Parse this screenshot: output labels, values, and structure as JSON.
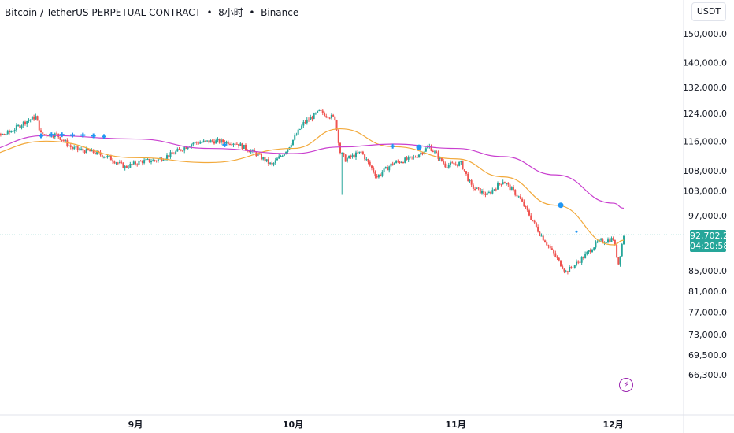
{
  "header": {
    "title": "Bitcoin / TetherUS PERPETUAL CONTRACT  •  8小时  •  Binance",
    "currency": "USDT"
  },
  "price_badge": {
    "price": "92,702.2",
    "countdown": "04:20:58"
  },
  "colors": {
    "up": "#26a69a",
    "down": "#ef5350",
    "ma_fast": "#f2a93b",
    "ma_slow": "#c93fcf",
    "marker": "#2196f3",
    "bolt": "#9c27b0"
  },
  "icons": {
    "bolt": "lightning-icon"
  },
  "chart_data": {
    "type": "candlestick",
    "title": "",
    "scale": "log",
    "ylim": [
      63000,
      160000
    ],
    "y_ticks": [
      "150,000.0",
      "140,000.0",
      "132,000.0",
      "124,000.0",
      "116,000.0",
      "108,000.0",
      "103,000.0",
      "97,000.0",
      "85,000.0",
      "81,000.0",
      "77,000.0",
      "73,000.0",
      "69,500.0",
      "66,300.0"
    ],
    "x_ticks": [
      "9月",
      "10月",
      "11月",
      "12月"
    ],
    "last_price": 92702.2,
    "close_path": [
      [
        "Aug 1",
        114500
      ],
      [
        "Aug 4",
        116500
      ],
      [
        "Aug 8",
        118500
      ],
      [
        "Aug 11",
        121500
      ],
      [
        "Aug 13",
        123000
      ],
      [
        "Aug 14",
        118000
      ],
      [
        "Aug 17",
        117800
      ],
      [
        "Aug 20",
        114000
      ],
      [
        "Aug 24",
        113000
      ],
      [
        "Aug 27",
        111500
      ],
      [
        "Aug 30",
        109000
      ],
      [
        "Sep 2",
        110500
      ],
      [
        "Sep 5",
        110800
      ],
      [
        "Sep 8",
        112500
      ],
      [
        "Sep 12",
        115500
      ],
      [
        "Sep 16",
        116000
      ],
      [
        "Sep 20",
        115600
      ],
      [
        "Sep 24",
        112500
      ],
      [
        "Sep 27",
        109500
      ],
      [
        "Sep 30",
        114000
      ],
      [
        "Oct 3",
        121000
      ],
      [
        "Oct 6",
        124500
      ],
      [
        "Oct 9",
        122500
      ],
      [
        "Oct 10",
        113000
      ],
      [
        "Oct 11",
        111000
      ],
      [
        "Oct 14",
        113000
      ],
      [
        "Oct 17",
        106500
      ],
      [
        "Oct 20",
        110000
      ],
      [
        "Oct 24",
        111500
      ],
      [
        "Oct 27",
        114500
      ],
      [
        "Oct 30",
        109500
      ],
      [
        "Nov 2",
        110000
      ],
      [
        "Nov 4",
        104000
      ],
      [
        "Nov 7",
        102000
      ],
      [
        "Nov 10",
        105500
      ],
      [
        "Nov 13",
        101500
      ],
      [
        "Nov 17",
        93000
      ],
      [
        "Nov 20",
        88000
      ],
      [
        "Nov 22",
        84800
      ],
      [
        "Nov 25",
        87500
      ],
      [
        "Nov 28",
        91000
      ],
      [
        "Dec 1",
        91800
      ],
      [
        "Dec 2",
        86500
      ],
      [
        "Dec 3",
        92702
      ]
    ],
    "series": [
      {
        "values": [
          [
            "Aug 1",
            111800
          ],
          [
            "Aug 15",
            116000
          ],
          [
            "Sep 1",
            111500
          ],
          [
            "Sep 15",
            110200
          ],
          [
            "Oct 1",
            114000
          ],
          [
            "Oct 10",
            119500
          ],
          [
            "Oct 20",
            114500
          ],
          [
            "Nov 1",
            111200
          ],
          [
            "Nov 10",
            106500
          ],
          [
            "Nov 20",
            99500
          ],
          [
            "Dec 1",
            90500
          ],
          [
            "Dec 3",
            91500
          ]
        ]
      },
      {
        "values": [
          [
            "Aug 1",
            113000
          ],
          [
            "Aug 15",
            117600
          ],
          [
            "Sep 1",
            116600
          ],
          [
            "Sep 15",
            114000
          ],
          [
            "Oct 1",
            112600
          ],
          [
            "Oct 10",
            114400
          ],
          [
            "Oct 20",
            115200
          ],
          [
            "Nov 1",
            114000
          ],
          [
            "Nov 10",
            111800
          ],
          [
            "Nov 20",
            107000
          ],
          [
            "Dec 1",
            100000
          ],
          [
            "Dec 3",
            98800
          ]
        ]
      }
    ],
    "markers": [
      {
        "x": "Aug 14",
        "y": 117500,
        "shape": "plus"
      },
      {
        "x": "Aug 16",
        "y": 117800,
        "shape": "plus"
      },
      {
        "x": "Aug 18",
        "y": 117800,
        "shape": "plus"
      },
      {
        "x": "Aug 20",
        "y": 117700,
        "shape": "plus"
      },
      {
        "x": "Aug 22",
        "y": 117700,
        "shape": "plus"
      },
      {
        "x": "Aug 24",
        "y": 117500,
        "shape": "plus"
      },
      {
        "x": "Aug 26",
        "y": 117300,
        "shape": "plus"
      },
      {
        "x": "Sep 18",
        "y": 115000,
        "shape": "plus"
      },
      {
        "x": "Oct 20",
        "y": 114600,
        "shape": "plus"
      },
      {
        "x": "Oct 25",
        "y": 114300,
        "shape": "dot"
      },
      {
        "x": "Nov 21",
        "y": 99500,
        "shape": "dot"
      },
      {
        "x": "Nov 24",
        "y": 93400,
        "shape": "small-dot"
      }
    ]
  }
}
